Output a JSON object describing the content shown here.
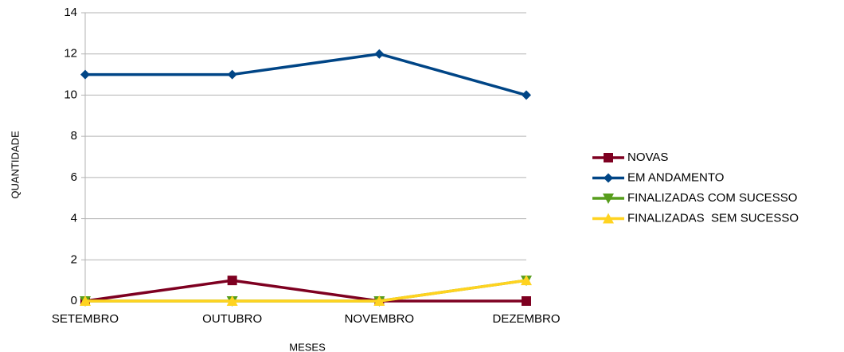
{
  "chart_data": {
    "type": "line",
    "categories": [
      "SETEMBRO",
      "OUTUBRO",
      "NOVEMBRO",
      "DEZEMBRO"
    ],
    "series": [
      {
        "name": "NOVAS",
        "color": "#7e0021",
        "marker": "square",
        "values": [
          0,
          1,
          0,
          0
        ]
      },
      {
        "name": "EM ANDAMENTO",
        "color": "#004586",
        "marker": "diamond",
        "values": [
          11,
          11,
          12,
          10
        ]
      },
      {
        "name": "FINALIZADAS COM SUCESSO",
        "color": "#579d1c",
        "marker": "triangle-down",
        "values": [
          0,
          0,
          0,
          1
        ]
      },
      {
        "name": "FINALIZADAS  SEM SUCESSO",
        "color": "#ffd320",
        "marker": "triangle-up",
        "values": [
          0,
          0,
          0,
          1
        ]
      }
    ],
    "xlabel": "MESES",
    "ylabel": "QUANTIDADE",
    "ylim": [
      0,
      14
    ],
    "yticks": [
      0,
      2,
      4,
      6,
      8,
      10,
      12,
      14
    ],
    "grid": true,
    "legend": "right"
  }
}
